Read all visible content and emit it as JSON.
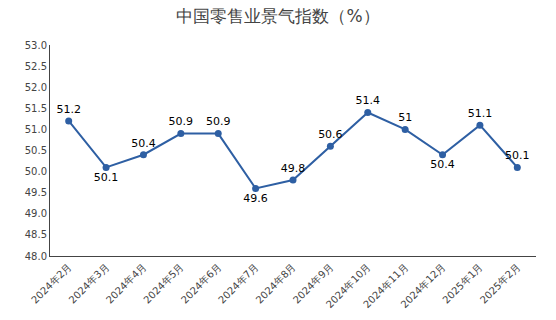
{
  "chart_data": {
    "type": "line",
    "title": "中国零售业景气指数（%）",
    "categories": [
      "2024年2月",
      "2024年3月",
      "2024年4月",
      "2024年5月",
      "2024年6月",
      "2024年7月",
      "2024年8月",
      "2024年9月",
      "2024年10月",
      "2024年11月",
      "2024年12月",
      "2025年1月",
      "2025年2月"
    ],
    "values": [
      51.2,
      50.1,
      50.4,
      50.9,
      50.9,
      49.6,
      49.8,
      50.6,
      51.4,
      51.0,
      50.4,
      51.1,
      50.1
    ],
    "color": "#2E5FA3",
    "marker": "circle",
    "ylim": [
      48.0,
      53.0
    ],
    "yticks": [
      {
        "value": 48,
        "label": "48.0"
      },
      48.5,
      {
        "value": 49,
        "label": "49.0"
      },
      49.5,
      {
        "value": 50,
        "label": "50.0"
      },
      50.5,
      {
        "value": 51,
        "label": "51.0"
      },
      51.5,
      {
        "value": 52,
        "label": "52.0"
      },
      52.5,
      {
        "value": 53,
        "label": "53.0"
      }
    ],
    "grid": false,
    "data_labels": true
  }
}
